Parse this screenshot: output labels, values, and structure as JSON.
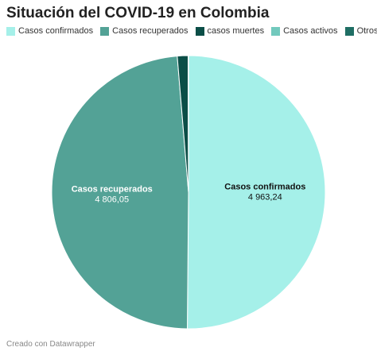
{
  "title": "Situación del COVID-19 en Colombia",
  "footer": "Creado con Datawrapper",
  "chart_data": {
    "type": "pie",
    "categories": [
      "Casos confirmados",
      "Casos recuperados",
      "casos muertes",
      "Casos activos",
      "Otros"
    ],
    "values": [
      4963.24,
      4806.05,
      126.0,
      1.0,
      3.0
    ],
    "display_labels": [
      "4 963,24",
      "4 806,05",
      "",
      "",
      ""
    ],
    "colors": [
      "#a5f0e9",
      "#53a296",
      "#0b4e47",
      "#72c9bd",
      "#1f6e64"
    ],
    "legend_placement": "top-left",
    "slice_label_colors": [
      "#111111",
      "#ffffff",
      "#ffffff",
      "#111111",
      "#ffffff"
    ]
  }
}
